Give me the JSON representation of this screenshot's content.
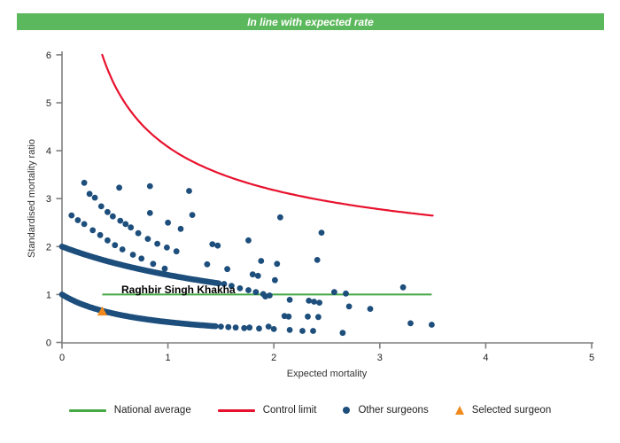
{
  "header": {
    "title": "In line with expected rate",
    "color": "#5cb85c"
  },
  "chart_data": {
    "type": "scatter",
    "title": "In line with expected rate",
    "xlabel": "Expected mortality",
    "ylabel": "Standardised mortality ratio",
    "axes": {
      "xlim": [
        0,
        5
      ],
      "ylim": [
        0,
        6
      ],
      "xticks": [
        0,
        1,
        2,
        3,
        4,
        5
      ],
      "yticks": [
        0,
        1,
        2,
        3,
        4,
        5,
        6
      ],
      "grid": false
    },
    "national_average": {
      "y": 1.0,
      "x_start": 0.38,
      "x_end": 3.49,
      "color": "#46a946"
    },
    "control_limit": {
      "formula": "y = offset + k / sqrt(x)",
      "offset": 1.0,
      "k": 3.08,
      "x_start": 0.3795,
      "x_end": 3.5,
      "y_at_end": 2.65,
      "color": "#e8112d"
    },
    "selected_surgeon": {
      "name": "Raghbir Singh Khakha",
      "x": 0.38,
      "y": 0.65,
      "color": "#f08a1d"
    },
    "other_surgeons": {
      "color": "#1d4e7c",
      "dense_bands": [
        {
          "desc": "lowest dense band, y=a/(1+b*x)",
          "a": 1.0,
          "b": 1.35,
          "x_start": 0.0,
          "x_end": 1.45,
          "step": 0.01
        },
        {
          "desc": "second dense band, y=a/(1+b*x)",
          "a": 2.0,
          "b": 0.42,
          "x_start": 0.0,
          "x_end": 1.48,
          "step": 0.01
        }
      ],
      "band_tails": [
        [
          [
            1.5,
            0.33
          ],
          [
            1.57,
            0.32
          ],
          [
            1.64,
            0.31
          ],
          [
            1.72,
            0.3
          ]
        ],
        [
          [
            1.53,
            1.22
          ],
          [
            1.6,
            1.18
          ],
          [
            1.68,
            1.13
          ],
          [
            1.76,
            1.09
          ],
          [
            1.83,
            1.05
          ],
          [
            1.9,
            1.01
          ],
          [
            1.96,
            0.98
          ]
        ]
      ],
      "chains": [
        [
          [
            0.26,
            3.1
          ],
          [
            0.31,
            3.02
          ],
          [
            0.37,
            2.84
          ],
          [
            0.43,
            2.72
          ],
          [
            0.48,
            2.63
          ],
          [
            0.55,
            2.54
          ],
          [
            0.6,
            2.47
          ],
          [
            0.65,
            2.4
          ],
          [
            0.72,
            2.28
          ],
          [
            0.81,
            2.16
          ],
          [
            0.9,
            2.06
          ],
          [
            0.99,
            1.98
          ],
          [
            1.08,
            1.9
          ]
        ],
        [
          [
            0.09,
            2.65
          ],
          [
            0.15,
            2.55
          ],
          [
            0.21,
            2.47
          ],
          [
            0.29,
            2.34
          ],
          [
            0.36,
            2.24
          ],
          [
            0.43,
            2.13
          ],
          [
            0.5,
            2.03
          ],
          [
            0.57,
            1.94
          ],
          [
            0.67,
            1.83
          ],
          [
            0.75,
            1.75
          ],
          [
            0.86,
            1.64
          ],
          [
            0.97,
            1.54
          ]
        ]
      ],
      "points": [
        [
          0.21,
          3.33
        ],
        [
          0.54,
          3.23
        ],
        [
          0.83,
          3.26
        ],
        [
          1.2,
          3.16
        ],
        [
          0.83,
          2.7
        ],
        [
          1.0,
          2.5
        ],
        [
          1.12,
          2.37
        ],
        [
          1.23,
          2.66
        ],
        [
          2.06,
          2.61
        ],
        [
          2.45,
          2.29
        ],
        [
          1.76,
          2.13
        ],
        [
          1.42,
          2.05
        ],
        [
          1.47,
          2.02
        ],
        [
          1.37,
          1.63
        ],
        [
          1.56,
          1.53
        ],
        [
          1.88,
          1.7
        ],
        [
          2.03,
          1.64
        ],
        [
          2.41,
          1.72
        ],
        [
          1.8,
          1.42
        ],
        [
          1.85,
          1.39
        ],
        [
          2.01,
          1.3
        ],
        [
          3.22,
          1.15
        ],
        [
          2.57,
          1.05
        ],
        [
          2.68,
          1.02
        ],
        [
          1.92,
          0.96
        ],
        [
          2.15,
          0.89
        ],
        [
          2.33,
          0.87
        ],
        [
          2.38,
          0.85
        ],
        [
          2.43,
          0.83
        ],
        [
          2.71,
          0.75
        ],
        [
          2.91,
          0.7
        ],
        [
          2.1,
          0.55
        ],
        [
          2.14,
          0.54
        ],
        [
          2.32,
          0.54
        ],
        [
          2.42,
          0.53
        ],
        [
          1.95,
          0.33
        ],
        [
          1.77,
          0.31
        ],
        [
          1.86,
          0.29
        ],
        [
          2.0,
          0.28
        ],
        [
          2.15,
          0.26
        ],
        [
          2.27,
          0.24
        ],
        [
          2.37,
          0.24
        ],
        [
          2.65,
          0.2
        ],
        [
          3.29,
          0.4
        ],
        [
          3.49,
          0.37
        ]
      ]
    },
    "legend": [
      {
        "swatch": "line",
        "color": "#46a946",
        "label": "National average"
      },
      {
        "swatch": "line",
        "color": "#e8112d",
        "label": "Control limit"
      },
      {
        "swatch": "dot",
        "color": "#1d4e7c",
        "label": "Other surgeons"
      },
      {
        "swatch": "triangle",
        "color": "#f08a1d",
        "label": "Selected surgeon"
      }
    ],
    "legend_position": "bottom"
  }
}
